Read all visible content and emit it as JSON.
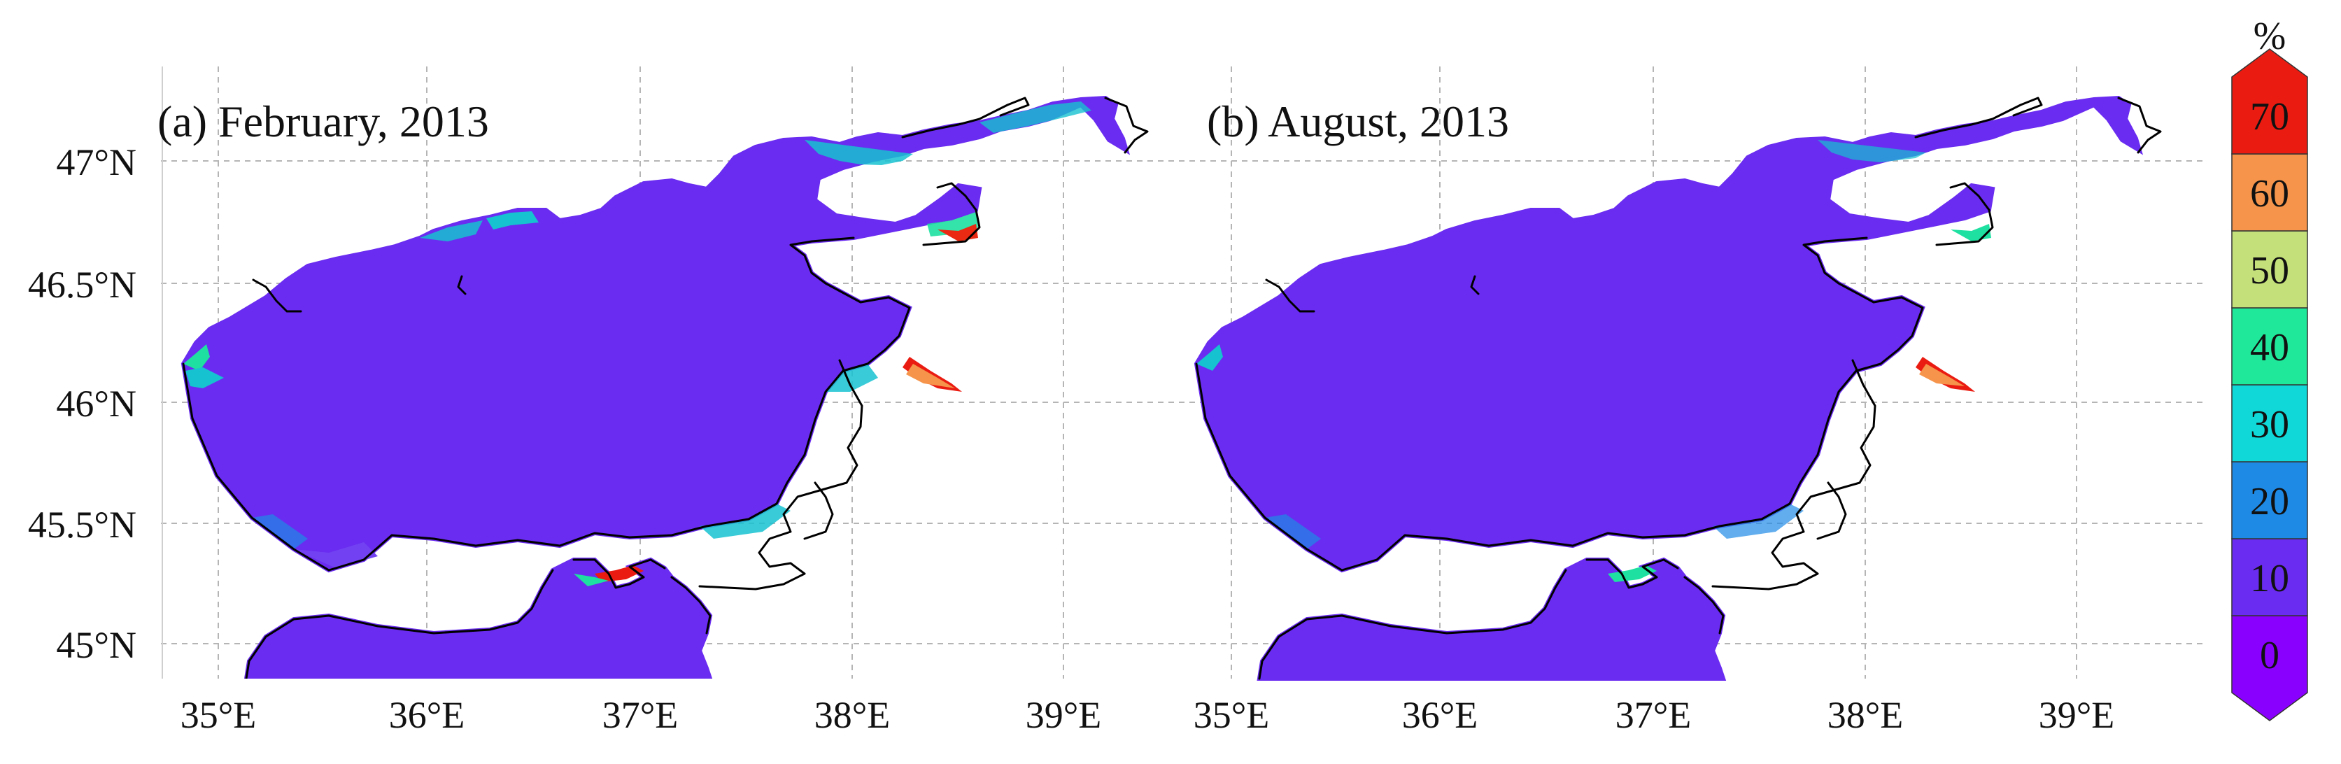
{
  "panels": [
    {
      "title": "(a) February, 2013"
    },
    {
      "title": "(b) August, 2013"
    }
  ],
  "lat_labels": [
    "47°N",
    "46.5°N",
    "46°N",
    "45.5°N",
    "45°N"
  ],
  "lon_labels": [
    "35°E",
    "36°E",
    "37°E",
    "38°E",
    "39°E"
  ],
  "colorbar": {
    "unit": "%",
    "ticks": [
      "0",
      "10",
      "20",
      "30",
      "40",
      "50",
      "60",
      "70"
    ],
    "colors": [
      "#8a00ff",
      "#6a2cf0",
      "#1e8ae6",
      "#10d8d8",
      "#20e89a",
      "#c4e07a",
      "#f5944a",
      "#ea1c12"
    ]
  }
}
